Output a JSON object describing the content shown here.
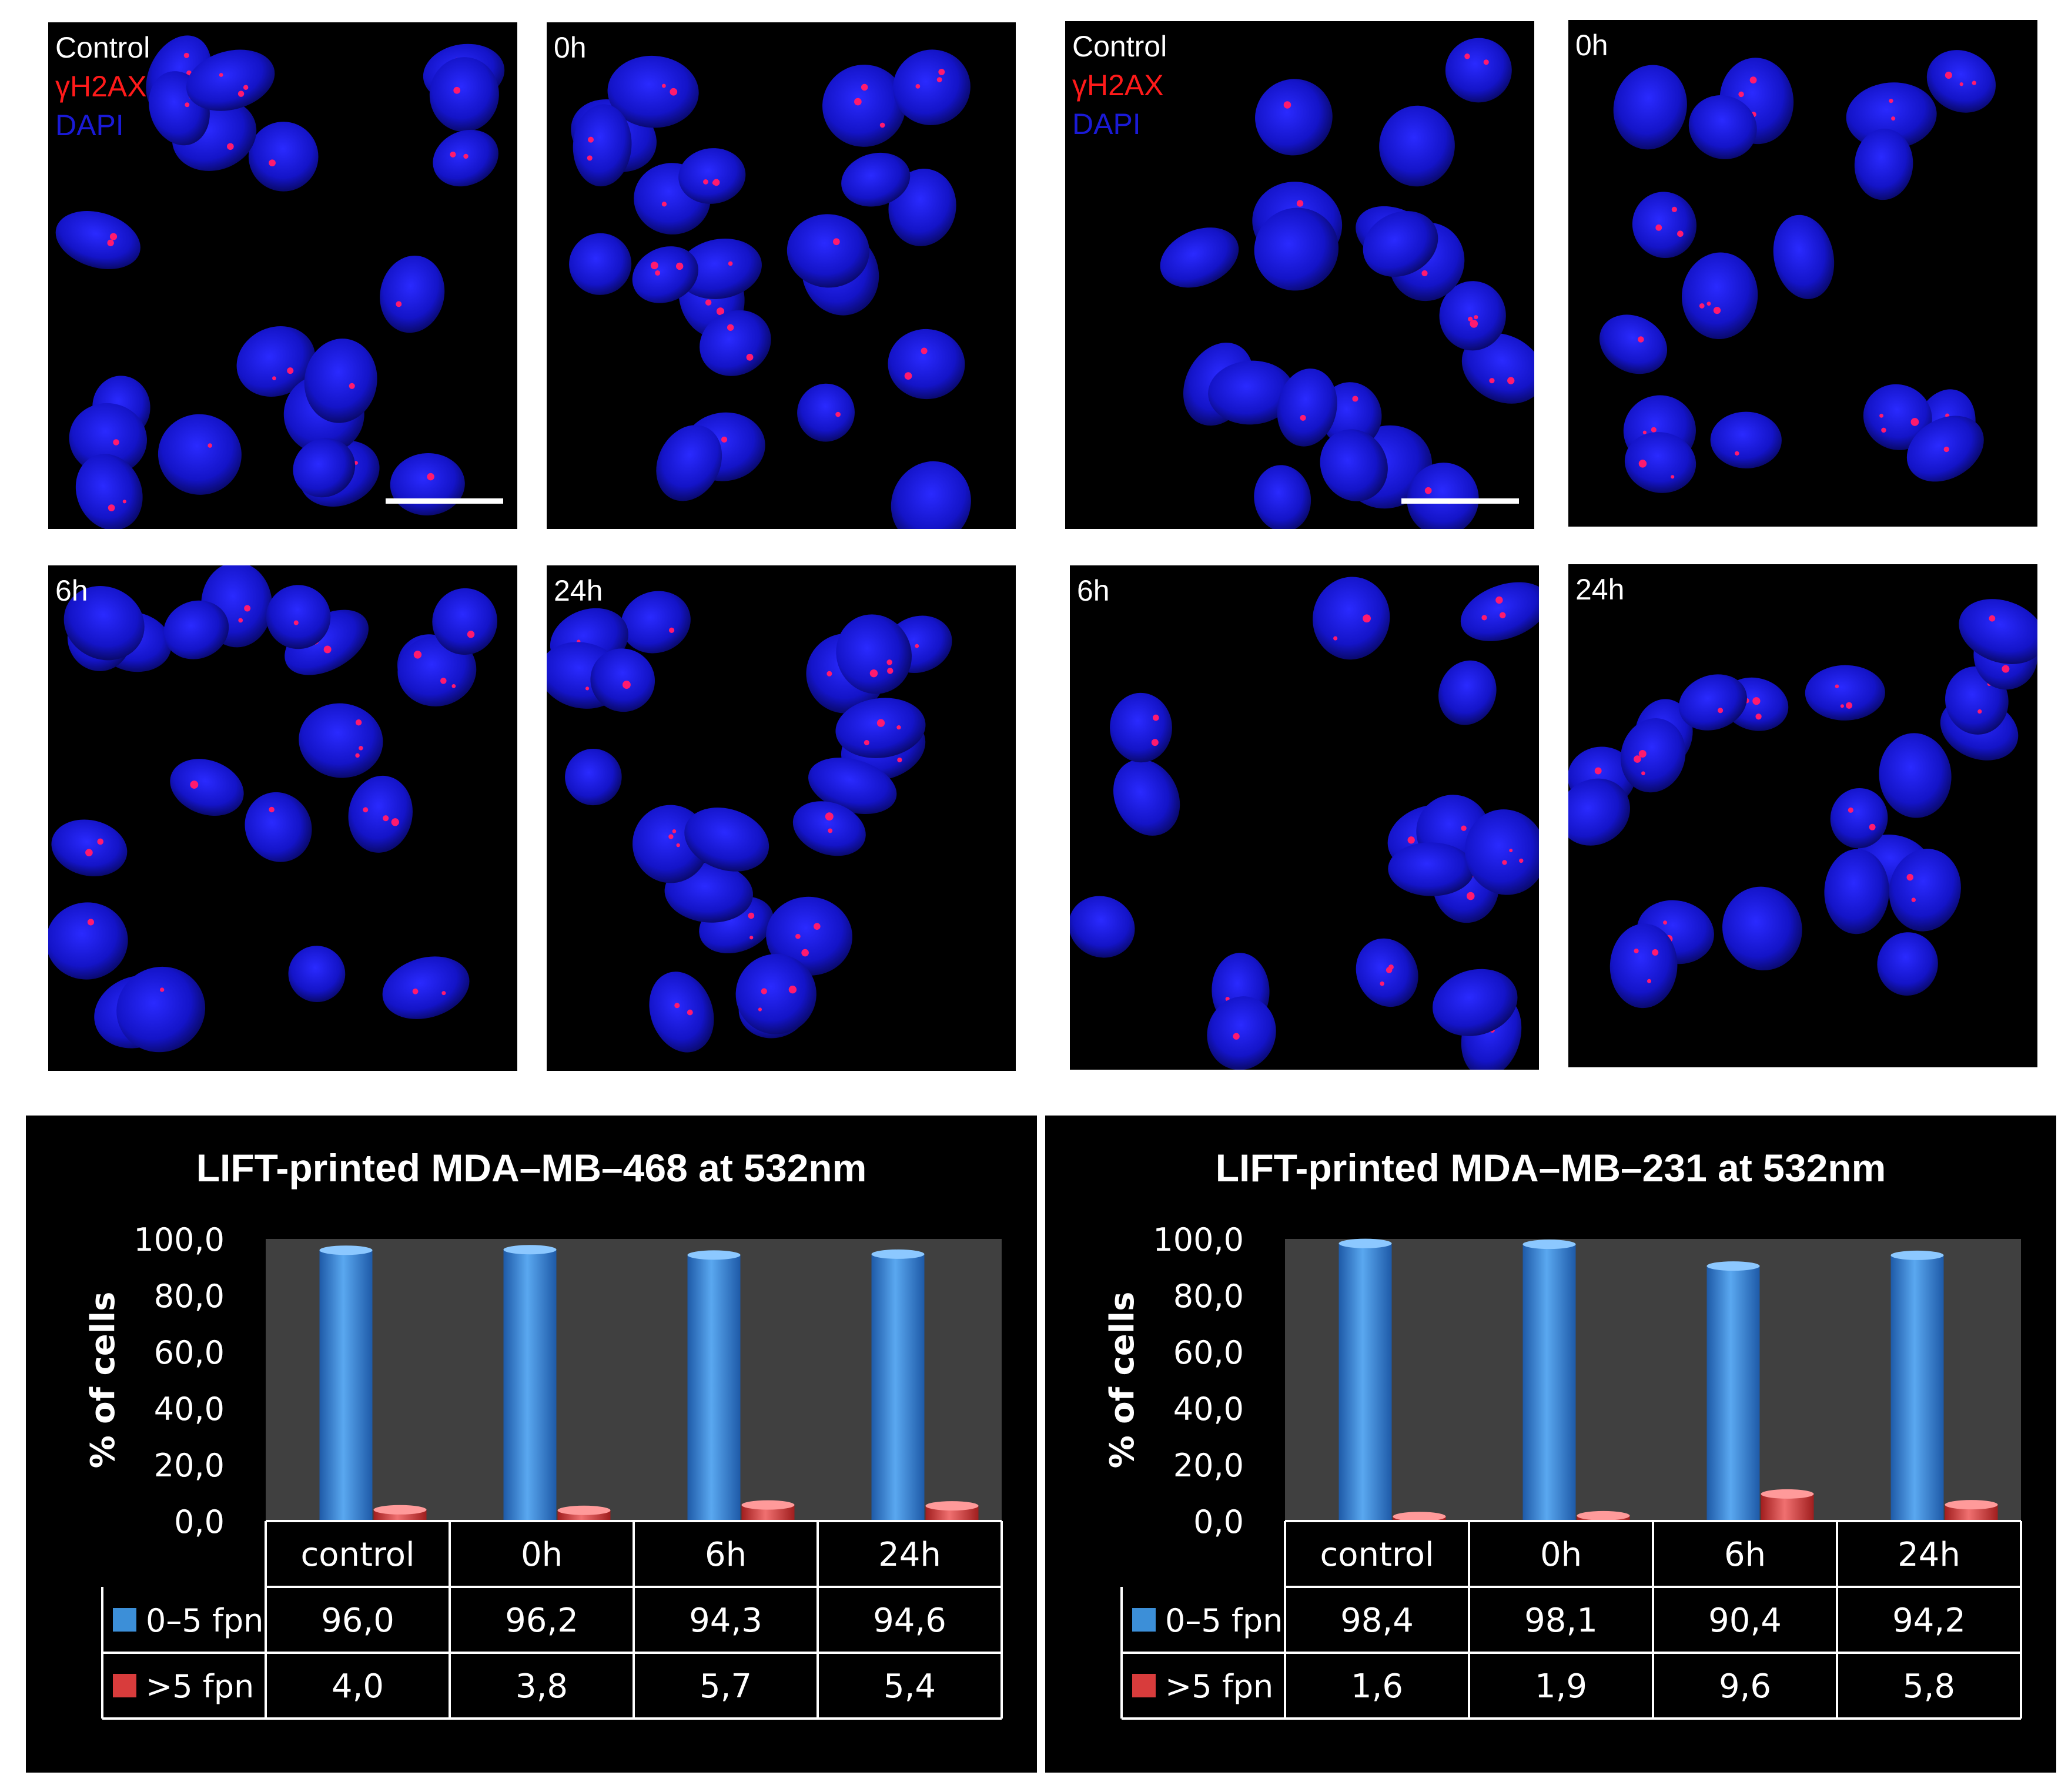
{
  "micrographs": {
    "left": {
      "control": {
        "label": "Control",
        "stain1": "γH2AX",
        "stain2": "DAPI"
      },
      "h0": {
        "label": "0h"
      },
      "h6": {
        "label": "6h"
      },
      "h24": {
        "label": "24h"
      }
    },
    "right": {
      "control": {
        "label": "Control",
        "stain1": "γH2AX",
        "stain2": "DAPI"
      },
      "h0": {
        "label": "0h"
      },
      "h6": {
        "label": "6h"
      },
      "h24": {
        "label": "24h"
      }
    }
  },
  "colors": {
    "nucleus": "#1414c8",
    "focus": "#ff1a6e",
    "bar_blue": "#3c8fd8",
    "bar_red": "#d83c3c",
    "plot_bg": "#404040"
  },
  "chart_data": [
    {
      "type": "bar",
      "title": "LIFT-printed MDA–MB–468 at 532nm",
      "ylabel": "% of cells",
      "ylim": [
        0,
        100
      ],
      "yticks": [
        "0,0",
        "20,0",
        "40,0",
        "60,0",
        "80,0",
        "100,0"
      ],
      "categories": [
        "control",
        "0h",
        "6h",
        "24h"
      ],
      "series": [
        {
          "name": "0–5 fpn",
          "values": [
            96.0,
            96.2,
            94.3,
            94.6
          ],
          "labels": [
            "96,0",
            "96,2",
            "94,3",
            "94,6"
          ]
        },
        {
          "name": ">5 fpn",
          "values": [
            4.0,
            3.8,
            5.7,
            5.4
          ],
          "labels": [
            "4,0",
            "3,8",
            "5,7",
            "5,4"
          ]
        }
      ]
    },
    {
      "type": "bar",
      "title": "LIFT-printed MDA–MB–231 at 532nm",
      "ylabel": "% of cells",
      "ylim": [
        0,
        100
      ],
      "yticks": [
        "0,0",
        "20,0",
        "40,0",
        "60,0",
        "80,0",
        "100,0"
      ],
      "categories": [
        "control",
        "0h",
        "6h",
        "24h"
      ],
      "series": [
        {
          "name": "0–5 fpn",
          "values": [
            98.4,
            98.1,
            90.4,
            94.2
          ],
          "labels": [
            "98,4",
            "98,1",
            "90,4",
            "94,2"
          ]
        },
        {
          "name": ">5 fpn",
          "values": [
            1.6,
            1.9,
            9.6,
            5.8
          ],
          "labels": [
            "1,6",
            "1,9",
            "9,6",
            "5,8"
          ]
        }
      ]
    }
  ]
}
